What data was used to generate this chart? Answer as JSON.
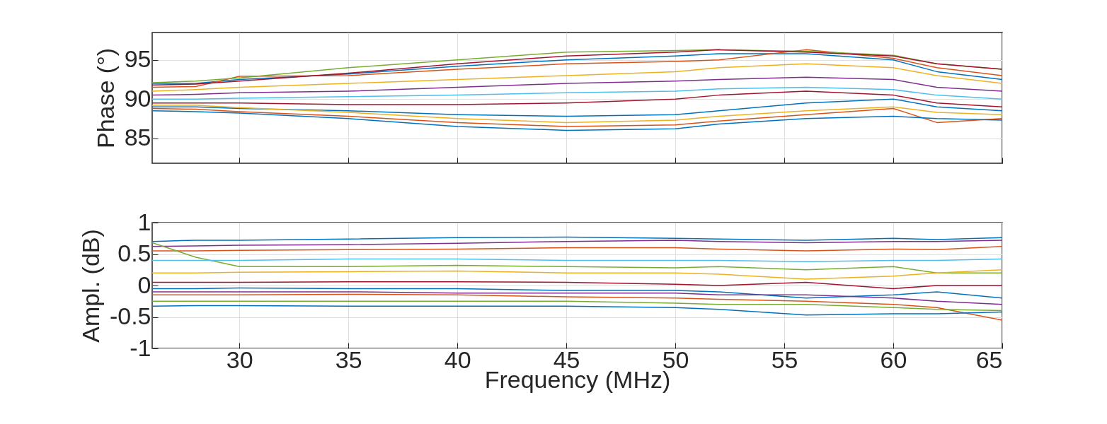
{
  "chart_data": [
    {
      "type": "line",
      "ylabel": "Phase (°)",
      "x": [
        26,
        28,
        30,
        35,
        40,
        45,
        50,
        52,
        56,
        60,
        62,
        65
      ],
      "xlim": [
        26,
        65
      ],
      "xticks": [
        30,
        35,
        40,
        45,
        50,
        55,
        60,
        65
      ],
      "ylim": [
        81.8,
        98.5
      ],
      "yticks": [
        85,
        90,
        95
      ],
      "grid": true,
      "tick_labels": "y",
      "line_style": "solid",
      "series": [
        {
          "color": "#0072bd",
          "values": [
            92,
            92,
            92.5,
            93.2,
            94.2,
            95,
            95.5,
            95.8,
            95.8,
            95,
            93.5,
            92.5
          ]
        },
        {
          "color": "#d95319",
          "values": [
            91.5,
            91.6,
            92.9,
            93,
            93.8,
            94.5,
            94.8,
            95,
            96.3,
            95.2,
            94,
            93
          ]
        },
        {
          "color": "#edb120",
          "values": [
            91,
            91.2,
            91.5,
            92,
            92.5,
            93,
            93.5,
            94,
            94.5,
            94,
            93,
            92
          ]
        },
        {
          "color": "#7e2f8e",
          "values": [
            90.5,
            90.6,
            90.8,
            91,
            91.5,
            92,
            92.3,
            92.5,
            92.8,
            92.5,
            91.5,
            91
          ]
        },
        {
          "color": "#77ac30",
          "values": [
            92.1,
            92.3,
            92.7,
            94,
            95,
            96,
            96.2,
            96.3,
            96.1,
            95.6,
            94.5,
            93.8
          ]
        },
        {
          "color": "#4dbeee",
          "values": [
            90,
            90,
            90.1,
            90.3,
            90.5,
            90.8,
            91,
            91.3,
            91.5,
            91.2,
            90.5,
            90
          ]
        },
        {
          "color": "#a2142f",
          "values": [
            89.5,
            89.5,
            89.5,
            89.3,
            89.3,
            89.5,
            90,
            90.5,
            91,
            90.5,
            89.5,
            89
          ]
        },
        {
          "color": "#0072bd",
          "values": [
            89,
            89,
            88.8,
            88.5,
            88,
            87.8,
            88,
            88.5,
            89.5,
            90,
            89,
            88.5
          ]
        },
        {
          "color": "#d95319",
          "values": [
            88.8,
            88.7,
            88.4,
            87.8,
            87,
            86.5,
            86.7,
            87.2,
            88,
            88.8,
            87,
            87.5
          ]
        },
        {
          "color": "#edb120",
          "values": [
            89.2,
            89.2,
            88.9,
            88.3,
            87.5,
            87,
            87.3,
            87.8,
            88.5,
            89,
            88.3,
            88
          ]
        },
        {
          "color": "#0072bd",
          "values": [
            88.5,
            88.4,
            88.2,
            87.5,
            86.5,
            86,
            86.2,
            86.8,
            87.5,
            87.8,
            87.5,
            87.3
          ]
        },
        {
          "color": "#a2142f",
          "values": [
            91.8,
            91.9,
            92.3,
            93.3,
            94.5,
            95.5,
            96,
            96.3,
            96,
            95.5,
            94.5,
            93.8
          ]
        }
      ]
    },
    {
      "type": "line",
      "xlabel": "Frequency (MHz)",
      "ylabel": "Ampl. (dB)",
      "x": [
        26,
        28,
        30,
        35,
        40,
        45,
        50,
        52,
        56,
        60,
        62,
        65
      ],
      "xlim": [
        26,
        65
      ],
      "xticks": [
        30,
        35,
        40,
        45,
        50,
        55,
        60,
        65
      ],
      "ylim": [
        -1,
        1
      ],
      "yticks": [
        -1,
        -0.5,
        0,
        0.5,
        1
      ],
      "grid": true,
      "line_style": "solid",
      "series": [
        {
          "color": "#0072bd",
          "values": [
            0.7,
            0.72,
            0.72,
            0.74,
            0.76,
            0.77,
            0.75,
            0.74,
            0.72,
            0.75,
            0.73,
            0.76
          ]
        },
        {
          "color": "#7e2f8e",
          "values": [
            0.62,
            0.63,
            0.64,
            0.65,
            0.67,
            0.7,
            0.72,
            0.7,
            0.68,
            0.7,
            0.7,
            0.72
          ]
        },
        {
          "color": "#d95319",
          "values": [
            0.55,
            0.55,
            0.56,
            0.57,
            0.58,
            0.6,
            0.6,
            0.58,
            0.55,
            0.58,
            0.57,
            0.62
          ]
        },
        {
          "color": "#77ac30",
          "values": [
            0.68,
            0.45,
            0.3,
            0.3,
            0.32,
            0.3,
            0.28,
            0.3,
            0.25,
            0.3,
            0.2,
            0.2
          ]
        },
        {
          "color": "#4dbeee",
          "values": [
            0.4,
            0.4,
            0.4,
            0.42,
            0.42,
            0.4,
            0.4,
            0.4,
            0.38,
            0.4,
            0.4,
            0.42
          ]
        },
        {
          "color": "#edb120",
          "values": [
            0.2,
            0.2,
            0.21,
            0.22,
            0.23,
            0.2,
            0.2,
            0.18,
            0.1,
            0.15,
            0.2,
            0.25
          ]
        },
        {
          "color": "#a2142f",
          "values": [
            0.05,
            0.05,
            0.05,
            0.06,
            0.06,
            0.05,
            0.02,
            0,
            0.05,
            -0.05,
            0,
            0
          ]
        },
        {
          "color": "#0072bd",
          "values": [
            -0.05,
            -0.05,
            -0.04,
            -0.05,
            -0.05,
            -0.08,
            -0.08,
            -0.1,
            -0.2,
            -0.15,
            -0.1,
            -0.2
          ]
        },
        {
          "color": "#d95319",
          "values": [
            -0.15,
            -0.15,
            -0.15,
            -0.14,
            -0.15,
            -0.18,
            -0.2,
            -0.22,
            -0.25,
            -0.3,
            -0.35,
            -0.55
          ]
        },
        {
          "color": "#77ac30",
          "values": [
            -0.25,
            -0.25,
            -0.25,
            -0.25,
            -0.25,
            -0.25,
            -0.28,
            -0.3,
            -0.3,
            -0.35,
            -0.38,
            -0.4
          ]
        },
        {
          "color": "#0072bd",
          "values": [
            -0.33,
            -0.32,
            -0.32,
            -0.33,
            -0.33,
            -0.33,
            -0.35,
            -0.38,
            -0.47,
            -0.45,
            -0.45,
            -0.42
          ]
        },
        {
          "color": "#7e2f8e",
          "values": [
            -0.1,
            -0.1,
            -0.1,
            -0.1,
            -0.12,
            -0.12,
            -0.12,
            -0.15,
            -0.15,
            -0.2,
            -0.25,
            -0.3
          ]
        }
      ]
    }
  ]
}
